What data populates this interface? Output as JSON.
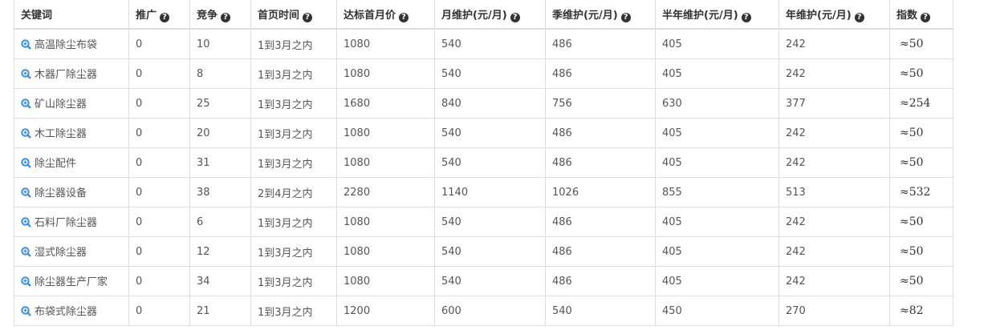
{
  "headers": [
    {
      "label": "关键词",
      "help": false
    },
    {
      "label": "推广",
      "help": true
    },
    {
      "label": "竞争",
      "help": true
    },
    {
      "label": "首页时间",
      "help": true
    },
    {
      "label": "达标首月价",
      "help": true
    },
    {
      "label": "月维护(元/月)",
      "help": true
    },
    {
      "label": "季维护(元/月)",
      "help": true
    },
    {
      "label": "半年维护(元/月)",
      "help": true
    },
    {
      "label": "年维护(元/月)",
      "help": true
    },
    {
      "label": "指数",
      "help": true
    }
  ],
  "help_icon": "question-circle-icon",
  "keyword_icon": "zoom-in-icon",
  "accent": "#3a8ee6",
  "rows": [
    [
      "高温除尘布袋",
      "0",
      "10",
      "1到3月之内",
      "1080",
      "540",
      "486",
      "405",
      "242",
      "≈50"
    ],
    [
      "木器厂除尘器",
      "0",
      "8",
      "1到3月之内",
      "1080",
      "540",
      "486",
      "405",
      "242",
      "≈50"
    ],
    [
      "矿山除尘器",
      "0",
      "25",
      "1到3月之内",
      "1680",
      "840",
      "756",
      "630",
      "377",
      "≈254"
    ],
    [
      "木工除尘器",
      "0",
      "20",
      "1到3月之内",
      "1080",
      "540",
      "486",
      "405",
      "242",
      "≈50"
    ],
    [
      "除尘配件",
      "0",
      "31",
      "1到3月之内",
      "1080",
      "540",
      "486",
      "405",
      "242",
      "≈50"
    ],
    [
      "除尘器设备",
      "0",
      "38",
      "2到4月之内",
      "2280",
      "1140",
      "1026",
      "855",
      "513",
      "≈532"
    ],
    [
      "石料厂除尘器",
      "0",
      "6",
      "1到3月之内",
      "1080",
      "540",
      "486",
      "405",
      "242",
      "≈50"
    ],
    [
      "湿式除尘器",
      "0",
      "12",
      "1到3月之内",
      "1080",
      "540",
      "486",
      "405",
      "242",
      "≈50"
    ],
    [
      "除尘器生产厂家",
      "0",
      "34",
      "1到3月之内",
      "1080",
      "540",
      "486",
      "405",
      "242",
      "≈50"
    ],
    [
      "布袋式除尘器",
      "0",
      "21",
      "1到3月之内",
      "1200",
      "600",
      "540",
      "450",
      "270",
      "≈82"
    ]
  ]
}
